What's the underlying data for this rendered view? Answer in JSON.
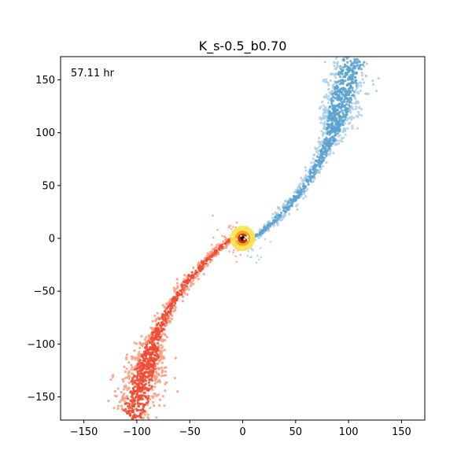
{
  "chart_data": {
    "type": "scatter",
    "title": "K_s-0.5_b0.70",
    "annotation": "57.11 hr",
    "xlabel": "",
    "ylabel": "",
    "xlim": [
      -172,
      172
    ],
    "ylim": [
      -172,
      172
    ],
    "x_ticks": [
      -150,
      -100,
      -50,
      0,
      50,
      100,
      150
    ],
    "y_ticks": [
      -150,
      -100,
      -50,
      0,
      50,
      100,
      150
    ],
    "x_tick_labels": [
      "−150",
      "−100",
      "−50",
      "0",
      "50",
      "100",
      "150"
    ],
    "y_tick_labels": [
      "−150",
      "−100",
      "−50",
      "0",
      "50",
      "100",
      "150"
    ],
    "grid": false,
    "legend": "none",
    "colors": {
      "blue_tail": "#5ba2d0",
      "blue_light": "#a9cfe6",
      "red_tail": "#ef4b32",
      "red_light": "#fc9c80",
      "core_inner": "#000000",
      "core_mid": "#cc2a10",
      "core_outer": "#ffe14d"
    },
    "series": [
      {
        "path": [
          [
            10,
            0
          ],
          [
            20,
            8
          ],
          [
            35,
            22
          ],
          [
            50,
            38
          ],
          [
            62,
            55
          ],
          [
            72,
            72
          ],
          [
            80,
            88
          ],
          [
            85,
            100
          ],
          [
            88,
            112
          ],
          [
            92,
            125
          ],
          [
            96,
            140
          ],
          [
            100,
            155
          ],
          [
            106,
            170
          ]
        ],
        "spread": [
          2,
          3,
          4,
          5,
          5,
          6,
          7,
          10,
          14,
          16,
          17,
          17,
          16
        ],
        "density": [
          40,
          60,
          70,
          70,
          70,
          80,
          80,
          120,
          140,
          140,
          120,
          100,
          50
        ]
      },
      {
        "path": [
          [
            -10,
            0
          ],
          [
            -20,
            -8
          ],
          [
            -35,
            -22
          ],
          [
            -50,
            -38
          ],
          [
            -62,
            -55
          ],
          [
            -72,
            -72
          ],
          [
            -80,
            -88
          ],
          [
            -85,
            -100
          ],
          [
            -88,
            -112
          ],
          [
            -92,
            -125
          ],
          [
            -96,
            -140
          ],
          [
            -100,
            -155
          ],
          [
            -106,
            -170
          ]
        ],
        "spread": [
          2,
          3,
          4,
          5,
          5,
          6,
          7,
          10,
          14,
          16,
          17,
          17,
          16
        ],
        "density": [
          40,
          60,
          70,
          70,
          70,
          80,
          80,
          120,
          140,
          140,
          120,
          100,
          50
        ]
      }
    ],
    "core": {
      "center": [
        0,
        0
      ],
      "radius": 12
    }
  }
}
